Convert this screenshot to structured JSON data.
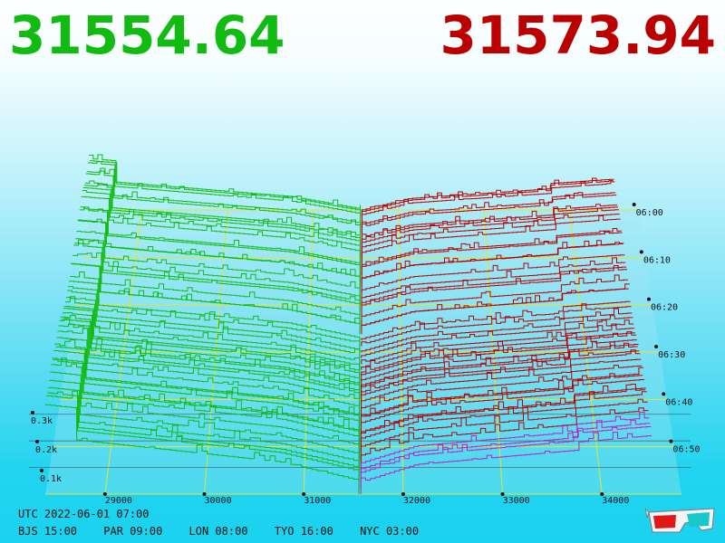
{
  "header": {
    "bid_price": "31554.64",
    "ask_price": "31573.94",
    "bid_color": "#11bb11",
    "ask_color": "#bb0000"
  },
  "footer": {
    "utc": "UTC 2022-06-01 07:00",
    "zones": [
      "BJS 15:00",
      "PAR 09:00",
      "LON 08:00",
      "TYO 16:00",
      "NYC 03:00"
    ]
  },
  "chart_data": {
    "type": "area",
    "description_of_axes": "3D depth chart over time",
    "price_ticks": [
      "29000",
      "30000",
      "31000",
      "32000",
      "33000",
      "34000"
    ],
    "time_ticks": [
      "06:00",
      "06:10",
      "06:20",
      "06:30",
      "06:40",
      "06:50"
    ],
    "depth_ticks": [
      "0.1k",
      "0.2k",
      "0.3k"
    ],
    "price_range": [
      28400,
      34800
    ],
    "depth_range": [
      0,
      0.55
    ],
    "bid_price": 31554.64,
    "ask_price": 31573.94,
    "series": [
      {
        "name": "bids",
        "color": "#11bb11"
      },
      {
        "name": "asks",
        "color": "#bb0000"
      }
    ],
    "grid": true
  }
}
